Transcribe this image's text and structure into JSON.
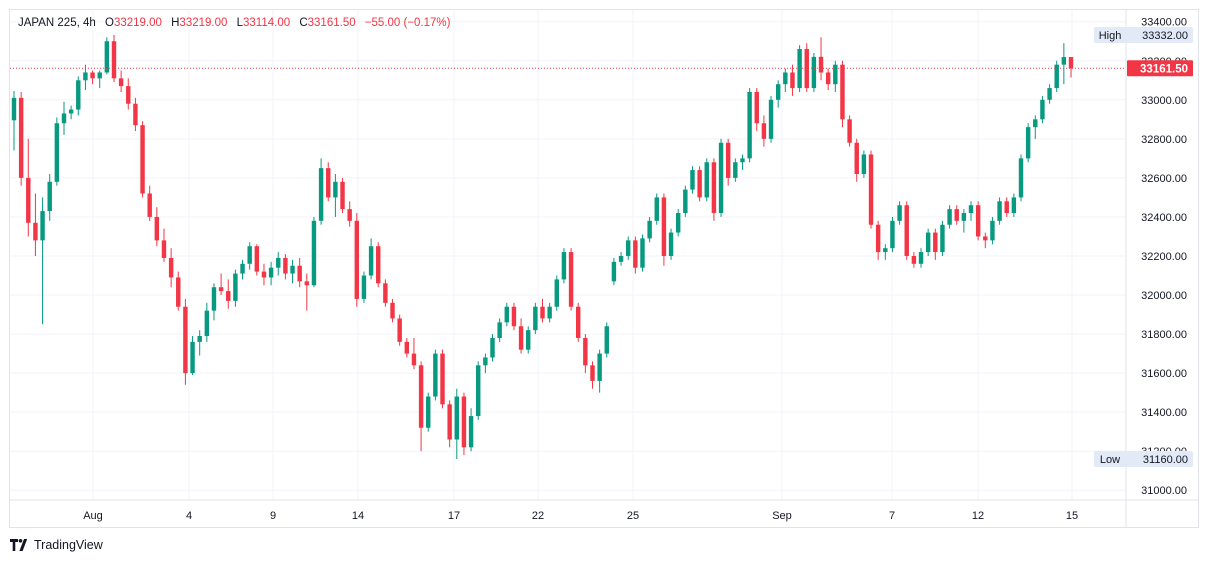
{
  "header": {
    "symbol": "JAPAN 225, 4h",
    "open_label": "O",
    "open": "33219.00",
    "high_label": "H",
    "high": "33219.00",
    "low_label": "L",
    "low": "33114.00",
    "close_label": "C",
    "close": "33161.50",
    "change": "−55.00 (−0.17%)"
  },
  "footer": {
    "brand": "TradingView"
  },
  "colors": {
    "up": "#089981",
    "down": "#f23645",
    "grid": "#f0f3fa",
    "axis_text": "#131722"
  },
  "chart_data": {
    "type": "candlestick",
    "timeframe": "4h",
    "y_axis": {
      "ylim": [
        30950,
        33460
      ],
      "ticks": [
        31000,
        31200,
        31400,
        31600,
        31800,
        32000,
        32200,
        32400,
        32600,
        32800,
        33000,
        33200,
        33400
      ],
      "tick_labels": [
        "31000.00",
        "31200.00",
        "31400.00",
        "31600.00",
        "31800.00",
        "32000.00",
        "32200.00",
        "32400.00",
        "32600.00",
        "32800.00",
        "33000.00",
        "33200.00",
        "33400.00"
      ]
    },
    "x_axis": {
      "tick_labels": [
        "Aug",
        "4",
        "9",
        "14",
        "17",
        "22",
        "25",
        "Sep",
        "7",
        "12",
        "15"
      ]
    },
    "markers": {
      "high": {
        "label": "High",
        "value": "33332.00"
      },
      "low": {
        "label": "Low",
        "value": "31160.00"
      },
      "last": {
        "value": "33161.50"
      }
    },
    "ohlc": [
      [
        32895,
        33045,
        32740,
        33010
      ],
      [
        33010,
        33040,
        32560,
        32600
      ],
      [
        32600,
        32800,
        32300,
        32370
      ],
      [
        32370,
        32520,
        32200,
        32280
      ],
      [
        32280,
        32500,
        31850,
        32430
      ],
      [
        32430,
        32620,
        32380,
        32580
      ],
      [
        32580,
        32910,
        32560,
        32880
      ],
      [
        32880,
        32990,
        32820,
        32930
      ],
      [
        32930,
        32970,
        32900,
        32950
      ],
      [
        32950,
        33120,
        32920,
        33100
      ],
      [
        33100,
        33180,
        33050,
        33140
      ],
      [
        33140,
        33150,
        33080,
        33110
      ],
      [
        33110,
        33150,
        33060,
        33140
      ],
      [
        33140,
        33320,
        33130,
        33300
      ],
      [
        33300,
        33332,
        33090,
        33110
      ],
      [
        33110,
        33150,
        33040,
        33070
      ],
      [
        33070,
        33110,
        32950,
        32980
      ],
      [
        32980,
        33010,
        32840,
        32870
      ],
      [
        32870,
        32890,
        32500,
        32520
      ],
      [
        32520,
        32560,
        32380,
        32400
      ],
      [
        32400,
        32450,
        32250,
        32280
      ],
      [
        32280,
        32340,
        32170,
        32190
      ],
      [
        32190,
        32240,
        32040,
        32090
      ],
      [
        32090,
        32120,
        31920,
        31940
      ],
      [
        31940,
        31980,
        31540,
        31600
      ],
      [
        31600,
        31790,
        31590,
        31760
      ],
      [
        31760,
        31820,
        31690,
        31790
      ],
      [
        31790,
        31960,
        31760,
        31920
      ],
      [
        31920,
        32060,
        31870,
        32040
      ],
      [
        32040,
        32110,
        32000,
        32020
      ],
      [
        32020,
        32080,
        31930,
        31970
      ],
      [
        31970,
        32130,
        31940,
        32110
      ],
      [
        32110,
        32180,
        32080,
        32160
      ],
      [
        32160,
        32270,
        32130,
        32250
      ],
      [
        32250,
        32260,
        32100,
        32120
      ],
      [
        32120,
        32160,
        32050,
        32090
      ],
      [
        32090,
        32170,
        32050,
        32140
      ],
      [
        32140,
        32220,
        32100,
        32190
      ],
      [
        32190,
        32210,
        32080,
        32110
      ],
      [
        32110,
        32180,
        32060,
        32150
      ],
      [
        32150,
        32190,
        32040,
        32070
      ],
      [
        32070,
        32110,
        31920,
        32050
      ],
      [
        32050,
        32400,
        32040,
        32380
      ],
      [
        32380,
        32700,
        32360,
        32650
      ],
      [
        32650,
        32680,
        32480,
        32500
      ],
      [
        32500,
        32620,
        32400,
        32580
      ],
      [
        32580,
        32600,
        32420,
        32440
      ],
      [
        32440,
        32480,
        32350,
        32380
      ],
      [
        32380,
        32420,
        31940,
        31980
      ],
      [
        31980,
        32120,
        31960,
        32100
      ],
      [
        32100,
        32290,
        32080,
        32250
      ],
      [
        32250,
        32270,
        32040,
        32060
      ],
      [
        32060,
        32080,
        31940,
        31960
      ],
      [
        31960,
        31980,
        31860,
        31880
      ],
      [
        31880,
        31900,
        31740,
        31760
      ],
      [
        31760,
        31780,
        31680,
        31700
      ],
      [
        31700,
        31780,
        31620,
        31640
      ],
      [
        31640,
        31660,
        31200,
        31320
      ],
      [
        31320,
        31500,
        31300,
        31480
      ],
      [
        31480,
        31720,
        31460,
        31700
      ],
      [
        31700,
        31720,
        31420,
        31440
      ],
      [
        31440,
        31460,
        31220,
        31260
      ],
      [
        31260,
        31520,
        31160,
        31480
      ],
      [
        31480,
        31500,
        31180,
        31220
      ],
      [
        31220,
        31420,
        31200,
        31380
      ],
      [
        31380,
        31660,
        31360,
        31640
      ],
      [
        31640,
        31700,
        31600,
        31680
      ],
      [
        31680,
        31800,
        31660,
        31780
      ],
      [
        31780,
        31880,
        31760,
        31860
      ],
      [
        31860,
        31960,
        31840,
        31940
      ],
      [
        31940,
        31960,
        31820,
        31840
      ],
      [
        31840,
        31880,
        31700,
        31720
      ],
      [
        31720,
        31840,
        31700,
        31820
      ],
      [
        31820,
        31960,
        31800,
        31940
      ],
      [
        31940,
        31980,
        31860,
        31880
      ],
      [
        31880,
        31960,
        31860,
        31940
      ],
      [
        31940,
        32100,
        31920,
        32080
      ],
      [
        32080,
        32240,
        32060,
        32220
      ],
      [
        32220,
        32240,
        31920,
        31940
      ],
      [
        31940,
        31960,
        31760,
        31780
      ],
      [
        31780,
        31800,
        31600,
        31640
      ],
      [
        31640,
        31660,
        31520,
        31560
      ],
      [
        31560,
        31720,
        31500,
        31700
      ],
      [
        31700,
        31860,
        31680,
        31840
      ],
      [
        32070,
        32190,
        32050,
        32170
      ],
      [
        32170,
        32220,
        32150,
        32200
      ],
      [
        32200,
        32300,
        32180,
        32280
      ],
      [
        32280,
        32300,
        32110,
        32140
      ],
      [
        32140,
        32310,
        32120,
        32290
      ],
      [
        32290,
        32400,
        32270,
        32380
      ],
      [
        32380,
        32520,
        32360,
        32500
      ],
      [
        32500,
        32520,
        32150,
        32200
      ],
      [
        32200,
        32340,
        32180,
        32320
      ],
      [
        32320,
        32440,
        32300,
        32420
      ],
      [
        32420,
        32560,
        32400,
        32540
      ],
      [
        32540,
        32660,
        32520,
        32640
      ],
      [
        32640,
        32660,
        32480,
        32500
      ],
      [
        32500,
        32700,
        32480,
        32680
      ],
      [
        32680,
        32700,
        32380,
        32420
      ],
      [
        32420,
        32800,
        32400,
        32780
      ],
      [
        32780,
        32800,
        32560,
        32600
      ],
      [
        32600,
        32700,
        32580,
        32680
      ],
      [
        32680,
        32720,
        32640,
        32700
      ],
      [
        32700,
        33060,
        32680,
        33040
      ],
      [
        33040,
        33060,
        32840,
        32880
      ],
      [
        32880,
        32920,
        32760,
        32800
      ],
      [
        32800,
        33020,
        32780,
        33000
      ],
      [
        33000,
        33100,
        32960,
        33080
      ],
      [
        33080,
        33160,
        33040,
        33140
      ],
      [
        33140,
        33180,
        33020,
        33060
      ],
      [
        33060,
        33280,
        33040,
        33260
      ],
      [
        33260,
        33290,
        33040,
        33060
      ],
      [
        33060,
        33240,
        33040,
        33220
      ],
      [
        33220,
        33320,
        33100,
        33140
      ],
      [
        33140,
        33160,
        33050,
        33080
      ],
      [
        33080,
        33200,
        33040,
        33180
      ],
      [
        33180,
        33200,
        32860,
        32900
      ],
      [
        32900,
        32920,
        32760,
        32780
      ],
      [
        32780,
        32800,
        32580,
        32620
      ],
      [
        32620,
        32740,
        32600,
        32720
      ],
      [
        32720,
        32740,
        32340,
        32360
      ],
      [
        32360,
        32380,
        32180,
        32220
      ],
      [
        32220,
        32260,
        32180,
        32240
      ],
      [
        32240,
        32400,
        32220,
        32380
      ],
      [
        32380,
        32480,
        32360,
        32460
      ],
      [
        32460,
        32480,
        32180,
        32200
      ],
      [
        32200,
        32220,
        32140,
        32160
      ],
      [
        32160,
        32240,
        32140,
        32220
      ],
      [
        32220,
        32340,
        32200,
        32320
      ],
      [
        32320,
        32340,
        32180,
        32220
      ],
      [
        32220,
        32380,
        32200,
        32360
      ],
      [
        32360,
        32460,
        32340,
        32440
      ],
      [
        32440,
        32460,
        32360,
        32380
      ],
      [
        32380,
        32440,
        32320,
        32420
      ],
      [
        32420,
        32480,
        32380,
        32460
      ],
      [
        32460,
        32480,
        32280,
        32300
      ],
      [
        32300,
        32320,
        32240,
        32280
      ],
      [
        32280,
        32400,
        32260,
        32380
      ],
      [
        32380,
        32500,
        32360,
        32480
      ],
      [
        32480,
        32500,
        32400,
        32420
      ],
      [
        32420,
        32520,
        32400,
        32500
      ],
      [
        32500,
        32720,
        32480,
        32700
      ],
      [
        32700,
        32880,
        32680,
        32860
      ],
      [
        32860,
        32920,
        32800,
        32900
      ],
      [
        32900,
        33020,
        32880,
        33000
      ],
      [
        33000,
        33080,
        32980,
        33060
      ],
      [
        33060,
        33200,
        33040,
        33180
      ],
      [
        33180,
        33290,
        33080,
        33219
      ],
      [
        33219,
        33219,
        33114,
        33161.5
      ]
    ]
  }
}
